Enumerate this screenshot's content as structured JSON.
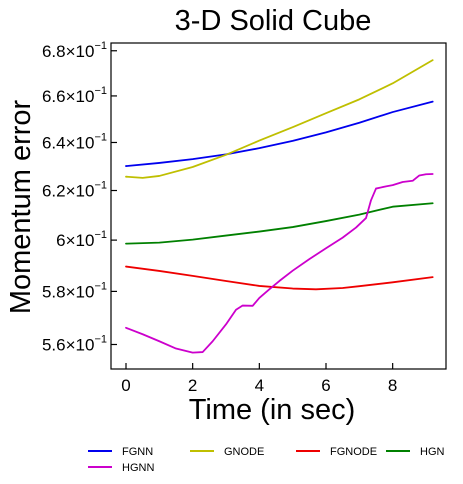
{
  "chart_data": {
    "type": "line",
    "title": "3-D Solid Cube",
    "xlabel": "Time (in sec)",
    "ylabel": "Momentum error",
    "xlim": [
      -0.45,
      9.6
    ],
    "ylim": [
      0.551,
      0.6835
    ],
    "xticks": [
      {
        "value": 0,
        "label": "0"
      },
      {
        "value": 2,
        "label": "2"
      },
      {
        "value": 4,
        "label": "4"
      },
      {
        "value": 6,
        "label": "6"
      },
      {
        "value": 8,
        "label": "8"
      }
    ],
    "yticks": [
      {
        "value": 0.56,
        "mantissa": "5.6",
        "base": "×10",
        "exp": "−1"
      },
      {
        "value": 0.58,
        "mantissa": "5.8",
        "base": "×10",
        "exp": "−1"
      },
      {
        "value": 0.6,
        "mantissa": "6",
        "base": "×10",
        "exp": "−1"
      },
      {
        "value": 0.62,
        "mantissa": "6.2",
        "base": "×10",
        "exp": "−1"
      },
      {
        "value": 0.64,
        "mantissa": "6.4",
        "base": "×10",
        "exp": "−1"
      },
      {
        "value": 0.66,
        "mantissa": "6.6",
        "base": "×10",
        "exp": "−1"
      },
      {
        "value": 0.68,
        "mantissa": "6.8",
        "base": "×10",
        "exp": "−1"
      }
    ],
    "yscale": "log",
    "grid": false,
    "legend_position": "bottom",
    "series": [
      {
        "name": "FGNN",
        "color": "#0000ee",
        "x": [
          0,
          1,
          2,
          3,
          4,
          5,
          6,
          7,
          8,
          9.2
        ],
        "y": [
          0.6301,
          0.6314,
          0.633,
          0.635,
          0.6376,
          0.6407,
          0.6443,
          0.6484,
          0.653,
          0.6575
        ]
      },
      {
        "name": "GNODE",
        "color": "#bfbf00",
        "x": [
          0,
          0.5,
          1,
          2,
          3,
          4,
          5,
          6,
          7,
          8,
          9.2
        ],
        "y": [
          0.6257,
          0.6252,
          0.626,
          0.6297,
          0.6348,
          0.6408,
          0.6465,
          0.6525,
          0.6585,
          0.6655,
          0.6758
        ]
      },
      {
        "name": "FGNODE",
        "color": "#ee0000",
        "x": [
          0,
          1,
          2,
          3,
          4,
          5,
          5.7,
          6.5,
          7,
          8,
          9.2
        ],
        "y": [
          0.5896,
          0.5879,
          0.586,
          0.584,
          0.5821,
          0.5811,
          0.5808,
          0.5813,
          0.582,
          0.5835,
          0.5855
        ]
      },
      {
        "name": "HGN",
        "color": "#008000",
        "x": [
          0,
          1,
          2,
          3,
          4,
          5,
          6,
          7,
          8,
          9.2
        ],
        "y": [
          0.5986,
          0.599,
          0.6002,
          0.6018,
          0.6034,
          0.6052,
          0.6076,
          0.6102,
          0.6134,
          0.6148
        ]
      },
      {
        "name": "HGNN",
        "color": "#cc00cc",
        "x": [
          0,
          0.5,
          1,
          1.5,
          2,
          2.3,
          2.6,
          3.0,
          3.3,
          3.5,
          3.8,
          4.0,
          4.3,
          4.6,
          5.0,
          5.5,
          6.0,
          6.5,
          6.9,
          7.2,
          7.35,
          7.5,
          7.8,
          8.0,
          8.3,
          8.6,
          8.8,
          9.0,
          9.2
        ],
        "y": [
          0.5662,
          0.5638,
          0.5612,
          0.5585,
          0.557,
          0.5572,
          0.5612,
          0.5675,
          0.573,
          0.5746,
          0.5745,
          0.5775,
          0.5808,
          0.584,
          0.588,
          0.5925,
          0.5968,
          0.601,
          0.605,
          0.6088,
          0.616,
          0.6208,
          0.6217,
          0.6222,
          0.6235,
          0.624,
          0.6262,
          0.6267,
          0.6268
        ]
      }
    ]
  }
}
